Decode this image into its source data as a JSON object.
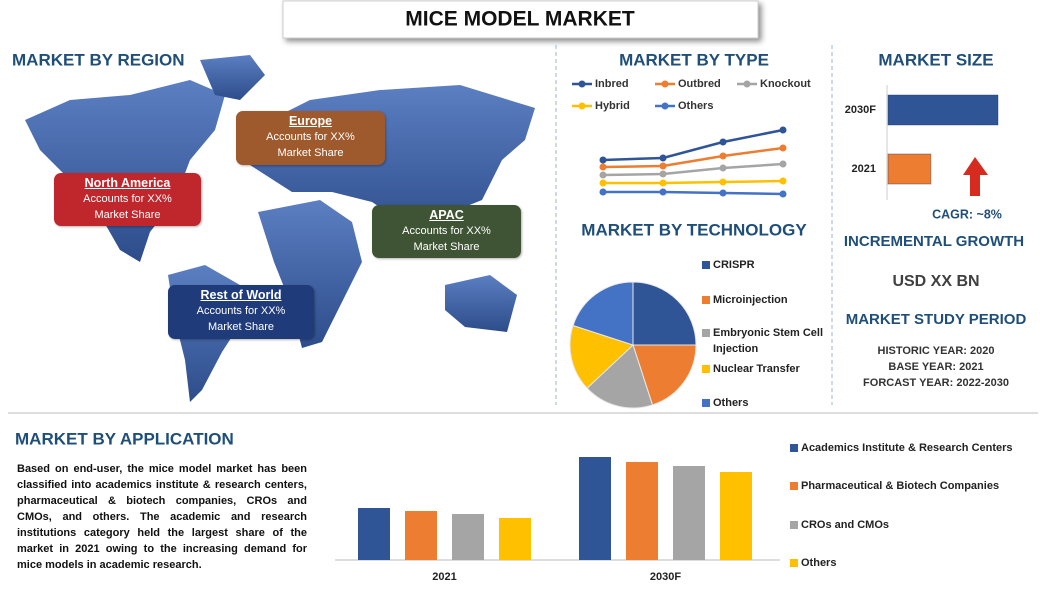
{
  "title": "MICE MODEL MARKET",
  "region": {
    "heading": "MARKET BY REGION",
    "callouts": [
      {
        "name": "North America",
        "lines": [
          "Accounts for XX%",
          "Market Share"
        ],
        "color": "#c0272d"
      },
      {
        "name": "Europe",
        "lines": [
          "Accounts for XX%",
          "Market Share"
        ],
        "color": "#9e5a2c"
      },
      {
        "name": "APAC",
        "lines": [
          "Accounts for XX%",
          "Market Share"
        ],
        "color": "#3e5434"
      },
      {
        "name": "Rest of World",
        "lines": [
          "Accounts for XX%",
          "Market Share"
        ],
        "color": "#1f3b7a"
      }
    ]
  },
  "size_panel": {
    "heading": "MARKET SIZE",
    "cagr": "CAGR:  ~8%",
    "growth_heading": "INCREMENTAL GROWTH",
    "growth_value": "USD XX BN",
    "period_heading": "MARKET STUDY PERIOD",
    "period_lines": [
      "HISTORIC YEAR: 2020",
      "BASE YEAR: 2021",
      "FORCAST YEAR: 2022-2030"
    ]
  },
  "application": {
    "heading": "MARKET BY APPLICATION",
    "text": "Based on end-user, the mice model market has been classified into academics institute & research centers, pharmaceutical & biotech companies, CROs and CMOs, and others. The academic and research institutions category held the largest share of the market in 2021 owing to the increasing demand for mice models in academic research."
  },
  "chart_data": [
    {
      "type": "line",
      "title": "MARKET BY TYPE",
      "categories": [
        null,
        null,
        null,
        null
      ],
      "ylim": [
        0,
        80
      ],
      "series": [
        {
          "name": "Inbred",
          "color": "#2f5597",
          "values": [
            40,
            42,
            58,
            70
          ]
        },
        {
          "name": "Outbred",
          "color": "#ed7d31",
          "values": [
            33,
            34,
            44,
            52
          ]
        },
        {
          "name": "Knockout",
          "color": "#a5a5a5",
          "values": [
            25,
            26,
            32,
            36
          ]
        },
        {
          "name": "Hybrid",
          "color": "#ffc000",
          "values": [
            17,
            17,
            18,
            19
          ]
        },
        {
          "name": "Others",
          "color": "#4472c4",
          "values": [
            8,
            8,
            7,
            6
          ]
        }
      ]
    },
    {
      "type": "pie",
      "title": "MARKET BY TECHNOLOGY",
      "categories": [
        "CRISPR",
        "Microinjection",
        "Embryonic Stem Cell Injection",
        "Nuclear Transfer",
        "Others"
      ],
      "values": [
        25,
        20,
        18,
        17,
        20
      ],
      "colors": [
        "#2f5597",
        "#ed7d31",
        "#a5a5a5",
        "#ffc000",
        "#4472c4"
      ]
    },
    {
      "type": "bar",
      "orientation": "horizontal",
      "categories": [
        "2030F",
        "2021"
      ],
      "values": [
        100,
        39
      ],
      "colors": [
        "#2f5597",
        "#ed7d31"
      ],
      "xlim": [
        0,
        120
      ]
    },
    {
      "type": "bar",
      "categories": [
        "2021",
        "2030F"
      ],
      "ylim": [
        0,
        110
      ],
      "series": [
        {
          "name": "Academics Institute & Research Centers",
          "color": "#2f5597",
          "values": [
            52,
            103
          ]
        },
        {
          "name": "Pharmaceutical & Biotech Companies",
          "color": "#ed7d31",
          "values": [
            49,
            98
          ]
        },
        {
          "name": "CROs and CMOs",
          "color": "#a5a5a5",
          "values": [
            46,
            94
          ]
        },
        {
          "name": "Others",
          "color": "#ffc000",
          "values": [
            42,
            88
          ]
        }
      ]
    }
  ]
}
